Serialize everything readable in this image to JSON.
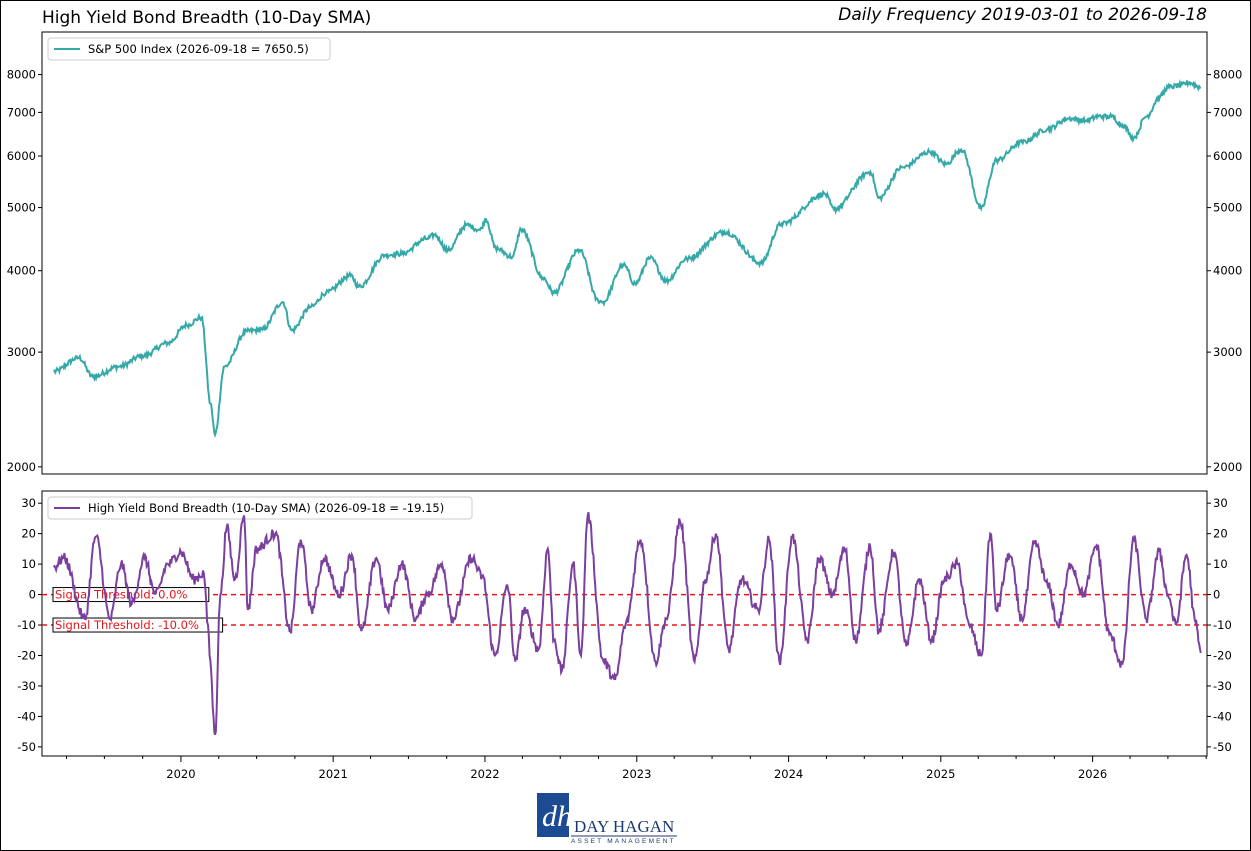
{
  "title": "High Yield Bond Breadth (10-Day SMA)",
  "subtitle": "Daily Frequency 2019-03-01 to 2026-09-18",
  "logo": {
    "name": "DAY HAGAN",
    "tagline": "ASSET MANAGEMENT",
    "mark": "dh"
  },
  "colors": {
    "top_series": "#35a9a7",
    "bottom_series": "#7b3f9e",
    "threshold": "#e8141b"
  },
  "chart_data": [
    {
      "type": "line",
      "yscale": "log",
      "ylim": [
        1950,
        9300
      ],
      "yticks": [
        2000,
        3000,
        4000,
        5000,
        6000,
        7000,
        8000
      ],
      "grid": false,
      "legend_position": "top-left",
      "series": [
        {
          "name": "S&P 500 Index (2026-09-18 = 7650.5)",
          "x": [
            "2019-03-01",
            "2019-05-01",
            "2019-06-03",
            "2019-08-05",
            "2019-10-01",
            "2019-12-02",
            "2020-01-15",
            "2020-02-19",
            "2020-03-12",
            "2020-03-23",
            "2020-04-15",
            "2020-06-08",
            "2020-07-15",
            "2020-09-02",
            "2020-09-23",
            "2020-11-09",
            "2020-12-15",
            "2021-02-12",
            "2021-03-04",
            "2021-05-07",
            "2021-06-15",
            "2021-08-15",
            "2021-09-02",
            "2021-10-04",
            "2021-11-18",
            "2021-12-20",
            "2022-01-03",
            "2022-01-27",
            "2022-03-08",
            "2022-03-29",
            "2022-05-20",
            "2022-06-16",
            "2022-08-16",
            "2022-09-30",
            "2022-10-12",
            "2022-11-30",
            "2022-12-28",
            "2023-02-02",
            "2023-03-13",
            "2023-05-01",
            "2023-07-31",
            "2023-10-27",
            "2023-12-15",
            "2024-03-28",
            "2024-04-19",
            "2024-07-16",
            "2024-08-05",
            "2024-09-30",
            "2024-12-06",
            "2025-01-13",
            "2025-02-19",
            "2025-04-08",
            "2025-05-15",
            "2025-07-15",
            "2025-09-15",
            "2025-11-03",
            "2025-12-15",
            "2026-01-15",
            "2026-02-15",
            "2026-03-13",
            "2026-04-10",
            "2026-05-10",
            "2026-06-12",
            "2026-07-01",
            "2026-08-01",
            "2026-08-20",
            "2026-09-18"
          ],
          "values": [
            2800,
            2940,
            2750,
            2850,
            2960,
            3100,
            3300,
            3390,
            2500,
            2240,
            2850,
            3230,
            3250,
            3580,
            3240,
            3520,
            3700,
            3930,
            3780,
            4230,
            4250,
            4480,
            4540,
            4300,
            4700,
            4620,
            4800,
            4330,
            4200,
            4630,
            3900,
            3700,
            4300,
            3600,
            3580,
            4080,
            3820,
            4180,
            3860,
            4170,
            4590,
            4110,
            4720,
            5250,
            4970,
            5670,
            5170,
            5760,
            6090,
            5830,
            6140,
            4980,
            5910,
            6300,
            6600,
            6850,
            6800,
            6900,
            6900,
            6700,
            6400,
            6900,
            7400,
            7650,
            7700,
            7780,
            7650.5
          ]
        }
      ]
    },
    {
      "type": "line",
      "ylim": [
        -53,
        34
      ],
      "yticks": [
        -50,
        -40,
        -30,
        -20,
        -10,
        0,
        10,
        20,
        30
      ],
      "x_tick_labels": [
        "2020",
        "2021",
        "2022",
        "2023",
        "2024",
        "2025",
        "2026"
      ],
      "grid": false,
      "legend_position": "top-left",
      "thresholds": [
        {
          "value": 0,
          "label": "Signal Threshold: 0.0%"
        },
        {
          "value": -10,
          "label": "Signal Threshold: -10.0%"
        }
      ],
      "series": [
        {
          "name": "High Yield Bond Breadth (10-Day SMA) (2026-09-18 = -19.15)",
          "x": [
            "2019-03-01",
            "2019-03-25",
            "2019-05-15",
            "2019-06-10",
            "2019-07-15",
            "2019-08-10",
            "2019-09-05",
            "2019-10-05",
            "2019-11-01",
            "2019-12-01",
            "2020-01-01",
            "2020-02-01",
            "2020-02-25",
            "2020-03-06",
            "2020-03-10",
            "2020-03-23",
            "2020-04-05",
            "2020-04-20",
            "2020-05-10",
            "2020-06-01",
            "2020-06-10",
            "2020-07-01",
            "2020-08-15",
            "2020-09-20",
            "2020-10-15",
            "2020-11-10",
            "2020-12-10",
            "2021-01-15",
            "2021-02-15",
            "2021-03-10",
            "2021-04-15",
            "2021-05-12",
            "2021-06-15",
            "2021-07-19",
            "2021-08-15",
            "2021-09-20",
            "2021-10-15",
            "2021-11-30",
            "2021-12-25",
            "2022-01-25",
            "2022-02-24",
            "2022-03-15",
            "2022-04-05",
            "2022-05-10",
            "2022-06-01",
            "2022-06-16",
            "2022-07-05",
            "2022-08-01",
            "2022-08-20",
            "2022-09-05",
            "2022-10-13",
            "2022-11-10",
            "2022-12-05",
            "2023-01-10",
            "2023-02-15",
            "2023-03-13",
            "2023-04-15",
            "2023-05-20",
            "2023-06-15",
            "2023-07-10",
            "2023-08-10",
            "2023-09-10",
            "2023-10-20",
            "2023-11-15",
            "2023-12-10",
            "2024-01-10",
            "2024-02-15",
            "2024-03-15",
            "2024-04-15",
            "2024-05-15",
            "2024-06-10",
            "2024-07-15",
            "2024-08-05",
            "2024-09-10",
            "2024-10-10",
            "2024-11-10",
            "2024-12-10",
            "2025-01-10",
            "2025-02-10",
            "2025-03-10",
            "2025-04-08",
            "2025-04-30",
            "2025-05-15",
            "2025-06-15",
            "2025-07-15",
            "2025-08-15",
            "2025-09-15",
            "2025-10-10",
            "2025-11-10",
            "2025-12-10",
            "2026-01-10",
            "2026-02-10",
            "2026-03-13",
            "2026-04-10",
            "2026-05-10",
            "2026-06-10",
            "2026-07-01",
            "2026-07-20",
            "2026-08-15",
            "2026-09-05",
            "2026-09-18"
          ],
          "values": [
            9,
            12,
            -8,
            19,
            -8,
            10,
            -3,
            12,
            0,
            10,
            14,
            5,
            7,
            -10,
            -20,
            -46,
            0,
            22,
            5,
            26,
            -5,
            15,
            20,
            -12,
            18,
            -5,
            12,
            0,
            13,
            -12,
            12,
            -5,
            10,
            -8,
            0,
            10,
            -8,
            12,
            6,
            -20,
            3,
            -22,
            -5,
            -18,
            15,
            -15,
            -25,
            10,
            -20,
            26,
            -22,
            -28,
            -10,
            18,
            -22,
            -8,
            24,
            -22,
            5,
            20,
            -18,
            5,
            -5,
            18,
            -22,
            19,
            -15,
            12,
            0,
            15,
            -15,
            16,
            -12,
            14,
            -17,
            5,
            -15,
            5,
            10,
            -10,
            -20,
            20,
            -5,
            13,
            -8,
            17,
            3,
            -10,
            10,
            0,
            16,
            -13,
            -23,
            18,
            -8,
            14,
            0,
            -10,
            13,
            -9,
            -19.15
          ]
        }
      ]
    }
  ]
}
